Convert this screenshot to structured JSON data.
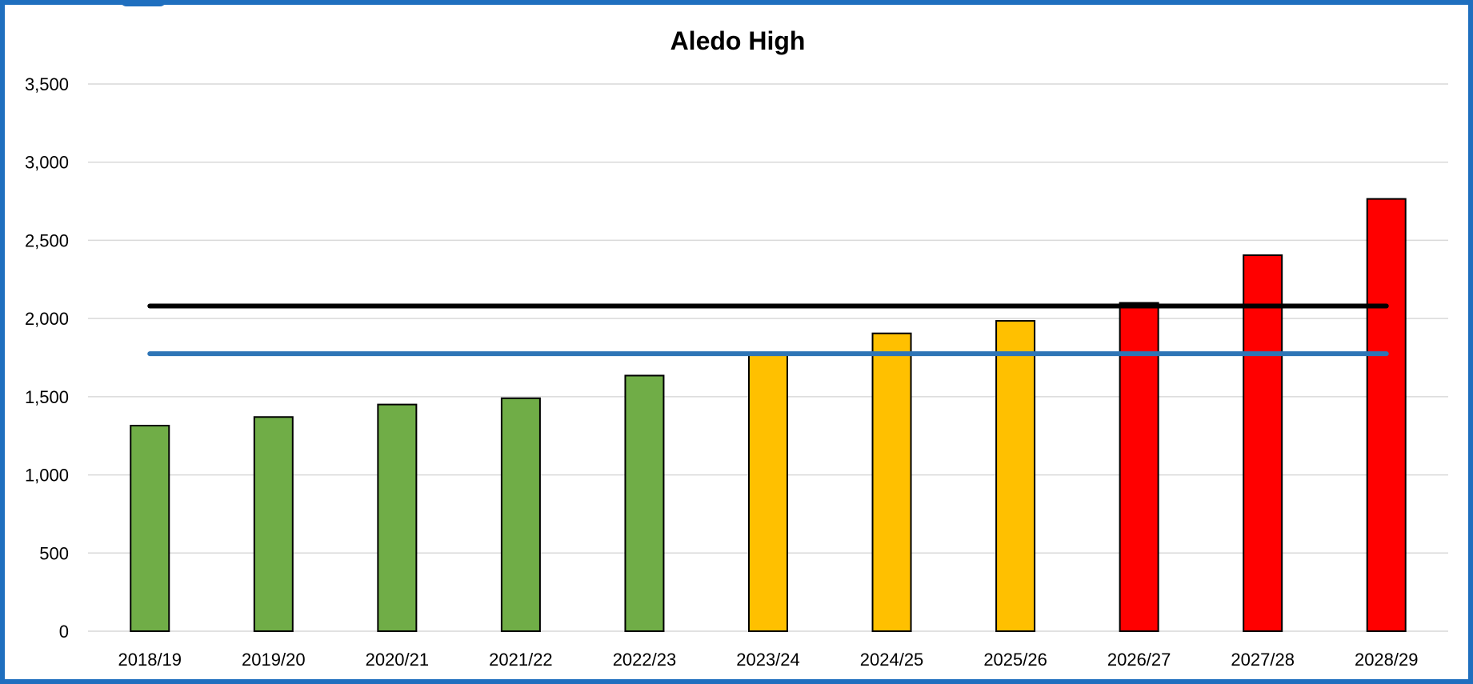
{
  "chart_data": {
    "type": "bar",
    "title": "Aledo High",
    "xlabel": "",
    "ylabel": "",
    "categories": [
      "2018/19",
      "2019/20",
      "2020/21",
      "2021/22",
      "2022/23",
      "2023/24",
      "2024/25",
      "2025/26",
      "2026/27",
      "2027/28",
      "2028/29"
    ],
    "values": [
      1315,
      1370,
      1450,
      1490,
      1635,
      1775,
      1905,
      1985,
      2100,
      2405,
      2765
    ],
    "bar_colors": [
      "#70ad47",
      "#70ad47",
      "#70ad47",
      "#70ad47",
      "#70ad47",
      "#ffc000",
      "#ffc000",
      "#ffc000",
      "#ff0000",
      "#ff0000",
      "#ff0000"
    ],
    "reference_lines": [
      {
        "value": 2080,
        "color": "#000000"
      },
      {
        "value": 1775,
        "color": "#2e75b6"
      }
    ],
    "ylim": [
      0,
      3500
    ],
    "yticks": [
      0,
      500,
      1000,
      1500,
      2000,
      2500,
      3000,
      3500
    ],
    "ytick_labels": [
      "0",
      "500",
      "1,000",
      "1,500",
      "2,000",
      "2,500",
      "3,000",
      "3,500"
    ],
    "grid": true,
    "legend": "none"
  }
}
